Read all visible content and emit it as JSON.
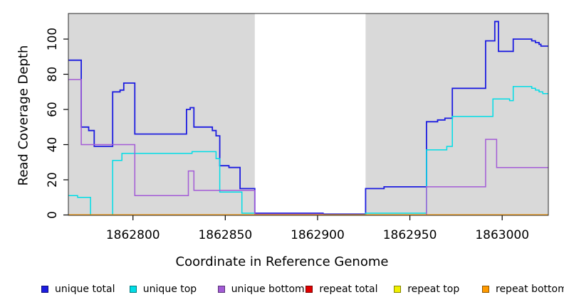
{
  "chart_data": {
    "type": "line",
    "subtype": "step-coverage-plot",
    "title": "",
    "xlabel": "Coordinate in Reference Genome",
    "ylabel": "Read Coverage Depth",
    "xlim": [
      1862765,
      1863025
    ],
    "ylim": [
      0,
      114.5
    ],
    "x_ticks": [
      1862800,
      1862850,
      1862900,
      1862950,
      1863000
    ],
    "y_ticks": [
      0,
      20,
      40,
      60,
      80,
      100
    ],
    "grid": false,
    "plot_bg_color": "#d9d9d9",
    "page_bg_color": "#ffffff",
    "box_color": "#2a2a2a",
    "highlight_region": {
      "x_start": 1862866,
      "x_end": 1862926,
      "color": "#ffffff"
    },
    "legend_position": "bottom",
    "series": [
      {
        "name": "unique total",
        "color": "#1c1ce0",
        "width": 1.8,
        "points": [
          [
            1862765,
            88
          ],
          [
            1862772,
            50
          ],
          [
            1862776,
            48
          ],
          [
            1862779,
            39
          ],
          [
            1862789,
            70
          ],
          [
            1862793,
            71
          ],
          [
            1862795,
            75
          ],
          [
            1862801,
            46
          ],
          [
            1862829,
            60
          ],
          [
            1862831,
            61
          ],
          [
            1862833,
            50
          ],
          [
            1862843,
            48
          ],
          [
            1862845,
            45
          ],
          [
            1862847,
            28
          ],
          [
            1862852,
            27
          ],
          [
            1862858,
            15
          ],
          [
            1862866,
            1
          ],
          [
            1862903,
            0.5
          ],
          [
            1862926,
            15
          ],
          [
            1862936,
            16
          ],
          [
            1862959,
            53
          ],
          [
            1862965,
            54
          ],
          [
            1862969,
            55
          ],
          [
            1862973,
            72
          ],
          [
            1862991,
            99
          ],
          [
            1862996,
            110
          ],
          [
            1862998,
            93
          ],
          [
            1863006,
            100
          ],
          [
            1863016,
            99
          ],
          [
            1863018,
            98
          ],
          [
            1863020,
            97
          ],
          [
            1863021,
            96
          ]
        ]
      },
      {
        "name": "unique top",
        "color": "#00dde6",
        "width": 1.5,
        "points": [
          [
            1862765,
            11
          ],
          [
            1862770,
            10
          ],
          [
            1862777,
            0
          ],
          [
            1862789,
            31
          ],
          [
            1862794,
            35
          ],
          [
            1862832,
            36
          ],
          [
            1862845,
            32
          ],
          [
            1862847,
            13
          ],
          [
            1862859,
            1
          ],
          [
            1862866,
            0
          ],
          [
            1862926,
            1
          ],
          [
            1862959,
            37
          ],
          [
            1862970,
            39
          ],
          [
            1862973,
            56
          ],
          [
            1862995,
            66
          ],
          [
            1863004,
            65
          ],
          [
            1863006,
            73
          ],
          [
            1863016,
            72
          ],
          [
            1863018,
            71
          ],
          [
            1863020,
            70
          ],
          [
            1863022,
            69
          ]
        ]
      },
      {
        "name": "unique bottom",
        "color": "#a35bd6",
        "width": 1.5,
        "points": [
          [
            1862765,
            77
          ],
          [
            1862772,
            40
          ],
          [
            1862801,
            11
          ],
          [
            1862830,
            25
          ],
          [
            1862833,
            14
          ],
          [
            1862866,
            0.4
          ],
          [
            1862903,
            0
          ],
          [
            1862959,
            16
          ],
          [
            1862991,
            43
          ],
          [
            1862997,
            27
          ]
        ]
      },
      {
        "name": "repeat total",
        "color": "#e00000",
        "width": 1.5,
        "points": [
          [
            1862765,
            0
          ]
        ]
      },
      {
        "name": "repeat top",
        "color": "#f0f000",
        "width": 1.5,
        "points": [
          [
            1862765,
            0
          ]
        ]
      },
      {
        "name": "repeat bottom",
        "color": "#ff9a00",
        "width": 2,
        "points": [
          [
            1862765,
            0
          ]
        ]
      }
    ]
  },
  "layout_text": {
    "x_axis_title": "Coordinate in Reference Genome",
    "y_axis_title": "Read Coverage Depth"
  }
}
